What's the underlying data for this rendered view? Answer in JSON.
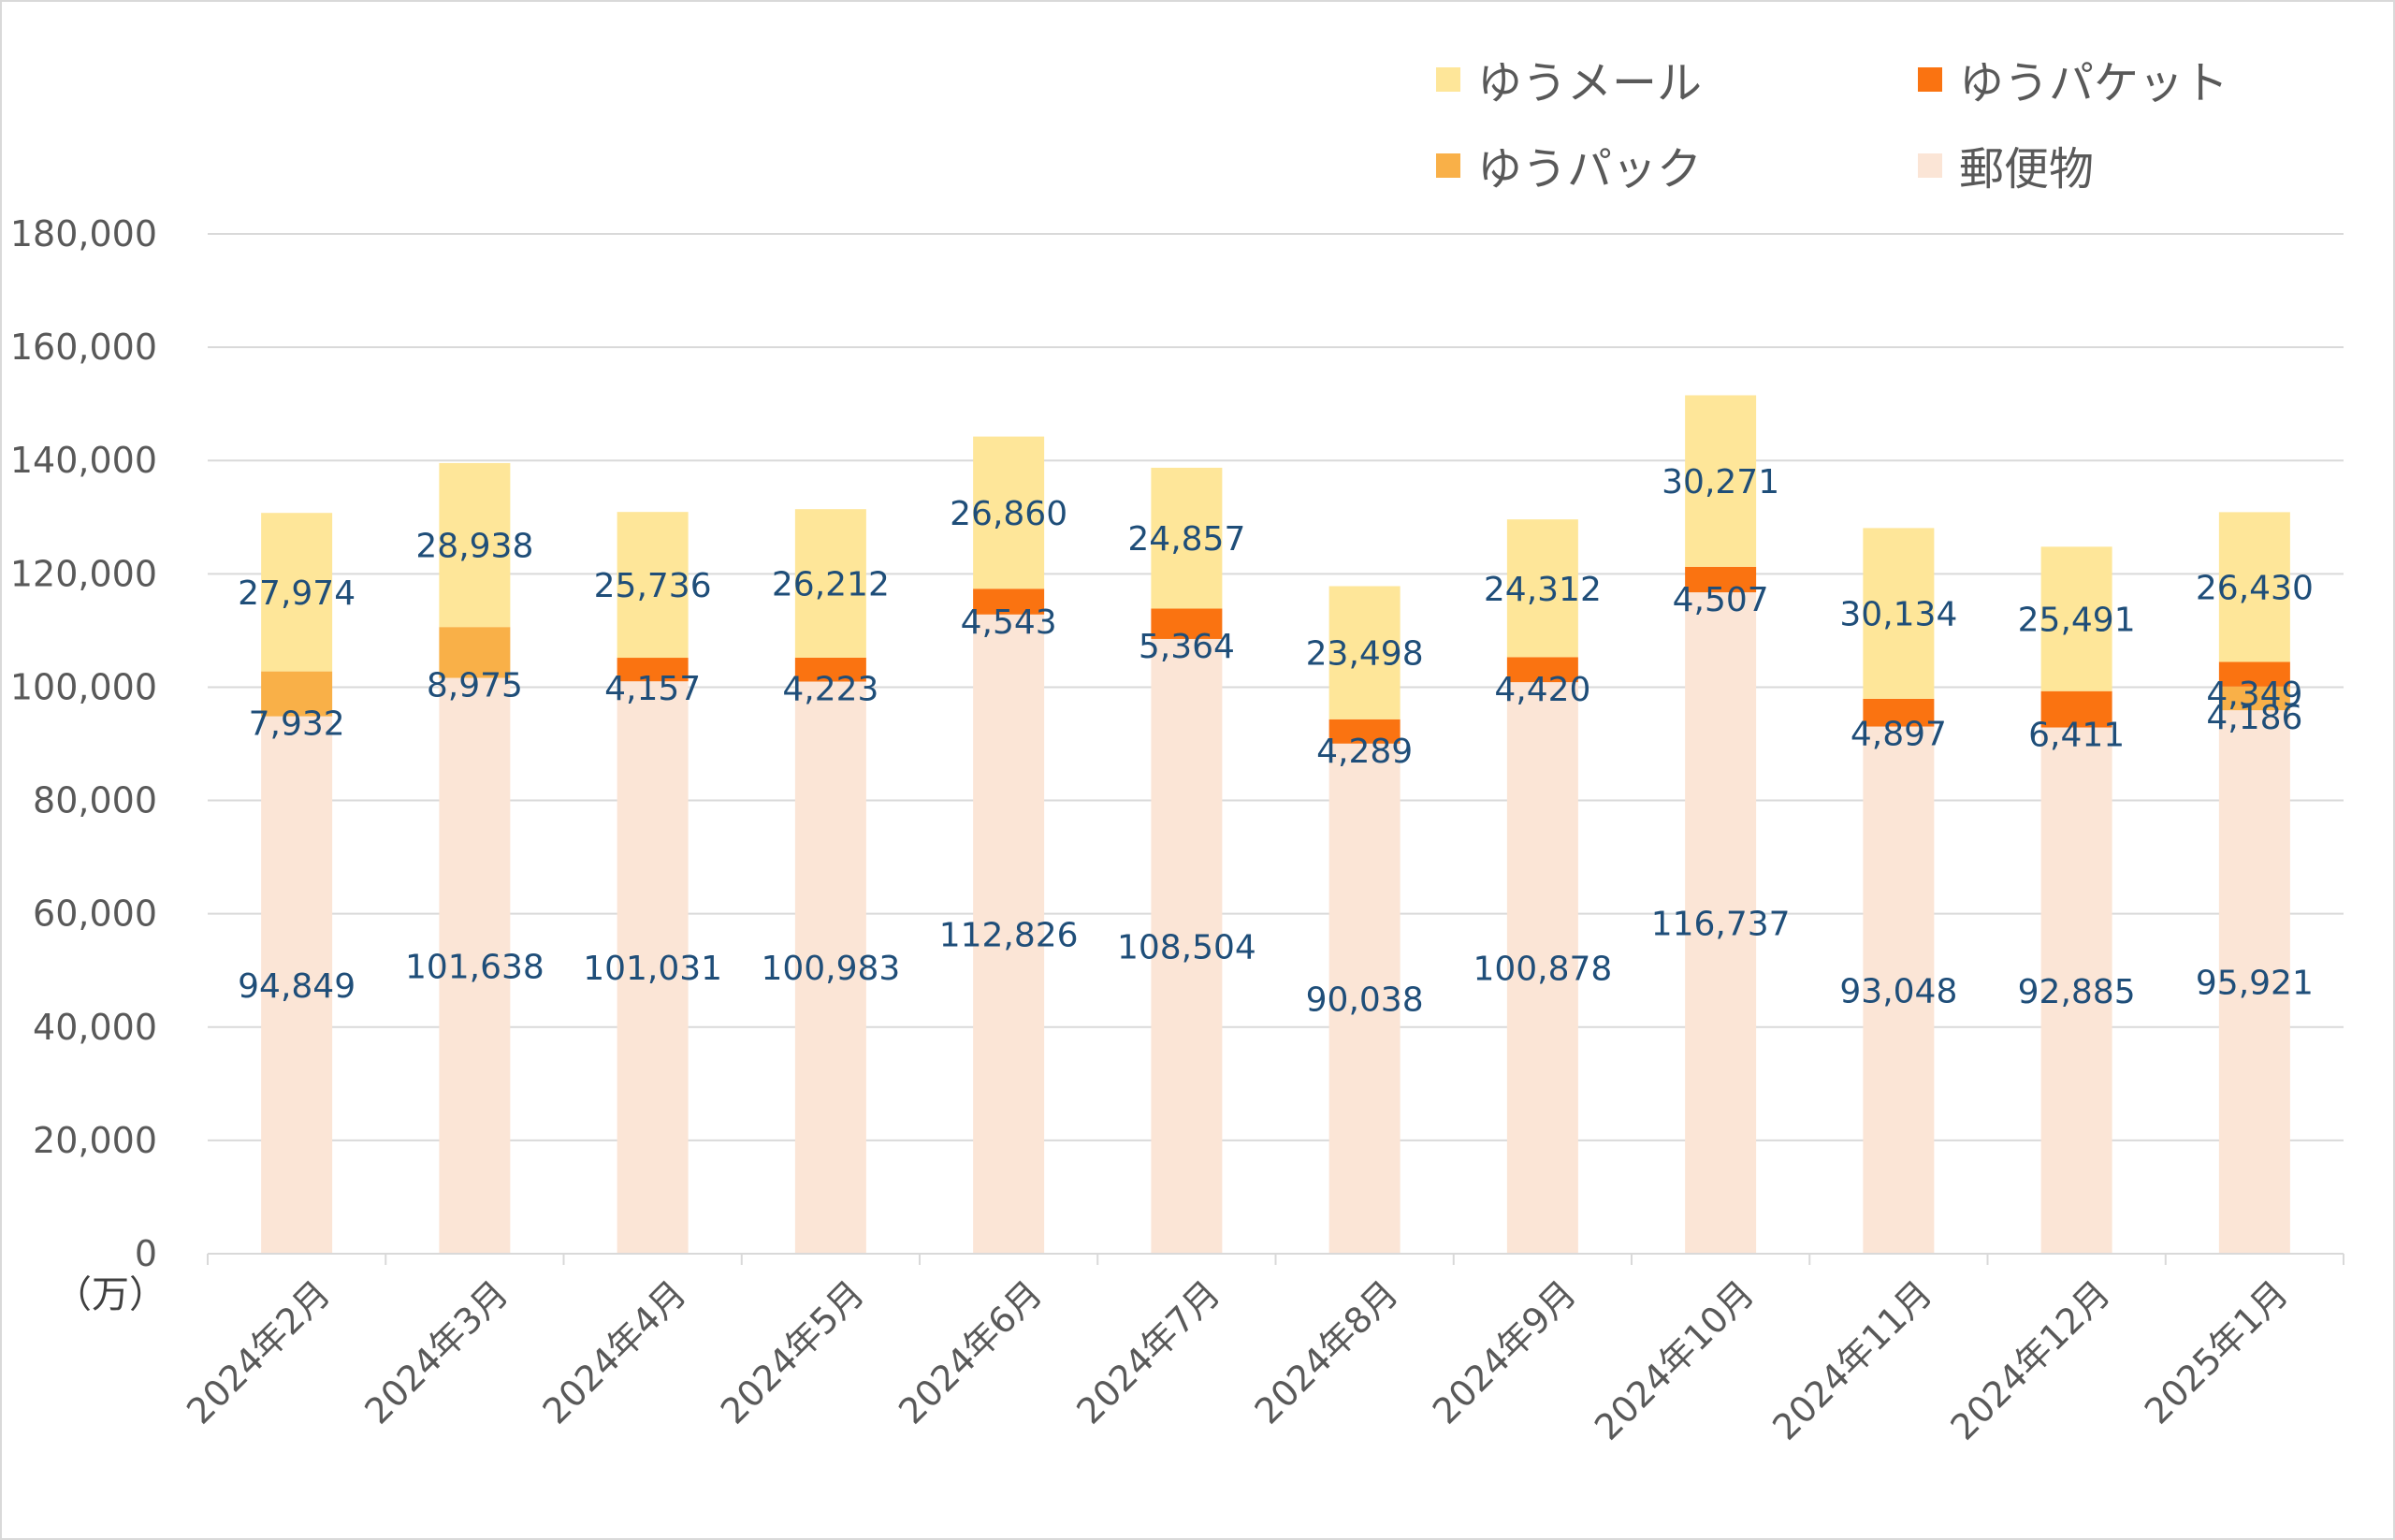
{
  "chart_data": {
    "type": "bar",
    "stacked": true,
    "categories": [
      "2024年2月",
      "2024年3月",
      "2024年4月",
      "2024年5月",
      "2024年6月",
      "2024年7月",
      "2024年8月",
      "2024年9月",
      "2024年10月",
      "2024年11月",
      "2024年12月",
      "2025年1月"
    ],
    "series": [
      {
        "name": "郵便物",
        "color": "#fbe5d6",
        "values": [
          94849,
          101638,
          101031,
          100983,
          112826,
          108504,
          90038,
          100878,
          116737,
          93048,
          92885,
          95921
        ]
      },
      {
        "name": "ゆうパック",
        "color": "#f9b048",
        "values": [
          7932,
          8975,
          null,
          null,
          null,
          null,
          null,
          null,
          null,
          null,
          null,
          4186
        ]
      },
      {
        "name": "ゆうパケット",
        "color": "#fa7311",
        "values": [
          null,
          null,
          4157,
          4223,
          4543,
          5364,
          4289,
          4420,
          4507,
          4897,
          6411,
          4349
        ]
      },
      {
        "name": "ゆうメール",
        "color": "#fee699",
        "values": [
          27974,
          28938,
          25736,
          26212,
          26860,
          24857,
          23498,
          24312,
          30271,
          30134,
          25491,
          26430
        ]
      }
    ],
    "yticks": [
      "0",
      "20,000",
      "40,000",
      "60,000",
      "80,000",
      "100,000",
      "120,000",
      "140,000",
      "160,000",
      "180,000"
    ],
    "ylim": [
      0,
      180000
    ],
    "unit_label": "（万）",
    "legend": {
      "position": "top-right",
      "items": [
        {
          "name": "ゆうメール",
          "color": "#fee699"
        },
        {
          "name": "ゆうパケット",
          "color": "#fa7311"
        },
        {
          "name": "ゆうパック",
          "color": "#f9b048"
        },
        {
          "name": "郵便物",
          "color": "#fbe5d6"
        }
      ]
    },
    "grid": true,
    "gridColor": "#d9d9d9",
    "labelColor": "#1f4e79",
    "axisTextColor": "#595959"
  }
}
